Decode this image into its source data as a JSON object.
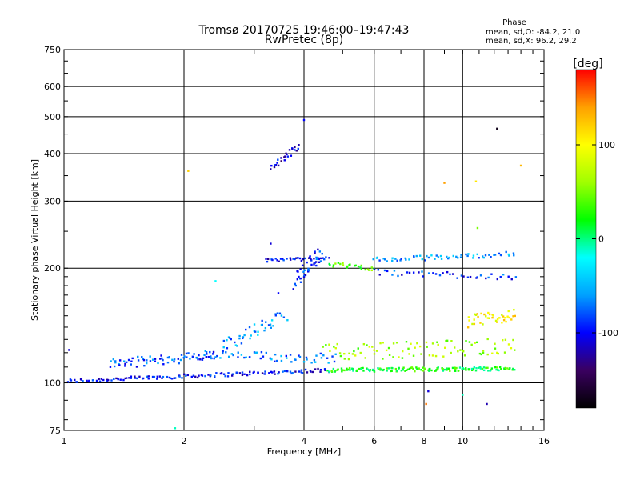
{
  "chart_data": {
    "type": "scatter",
    "title": "Tromsø 20170725 19:46:00–19:47:43",
    "subtitle": "RwPretec (8p)",
    "xlabel": "Frequency [MHz]",
    "ylabel": "Stationary phase Virtual Height [km]",
    "x_scale": "log",
    "y_scale": "log",
    "xlim": [
      1,
      16
    ],
    "ylim": [
      75,
      750
    ],
    "x_ticks": [
      1,
      2,
      4,
      6,
      8,
      10,
      16
    ],
    "x_tick_labels": [
      "1",
      "2",
      "4",
      "6",
      "8",
      "10",
      "16"
    ],
    "y_ticks": [
      75,
      100,
      200,
      300,
      400,
      500,
      600,
      750
    ],
    "y_tick_labels": [
      "75",
      "100",
      "200",
      "300",
      "400",
      "500",
      "600",
      "750"
    ],
    "grid": true,
    "phase_box": {
      "title": "Phase",
      "line_o": "mean, sd,O:  -84.2, 21.0",
      "line_x": "mean, sd,X:  96.2, 29.2"
    },
    "colorbar": {
      "label": "[deg]",
      "range": [
        -180,
        180
      ],
      "ticks": [
        100,
        0,
        -100
      ],
      "tick_labels": [
        "100",
        "0",
        "-100"
      ],
      "colors": [
        "#000000",
        "#3a0060",
        "#0000ff",
        "#00a0ff",
        "#00ffff",
        "#00ff00",
        "#a0ff00",
        "#ffff00",
        "#ffa000",
        "#ff0000"
      ]
    },
    "traces": [
      {
        "f_start": 1.02,
        "f_end": 4.6,
        "h_start": 101,
        "h_end": 108,
        "n": 130,
        "phase": -100,
        "spread": 0.012
      },
      {
        "f_start": 4.6,
        "f_end": 13.5,
        "h_start": 108,
        "h_end": 109,
        "n": 150,
        "phase": 20,
        "spread": 0.012
      },
      {
        "f_start": 1.3,
        "f_end": 2.4,
        "h_start": 112,
        "h_end": 118,
        "n": 70,
        "phase": -80,
        "spread": 0.03
      },
      {
        "f_start": 2.2,
        "f_end": 4.8,
        "h_start": 118,
        "h_end": 116,
        "n": 60,
        "phase": -70,
        "spread": 0.03
      },
      {
        "f_start": 2.5,
        "f_end": 3.6,
        "h_start": 125,
        "h_end": 150,
        "n": 45,
        "phase": -60,
        "spread": 0.04
      },
      {
        "f_start": 3.2,
        "f_end": 4.6,
        "h_start": 210,
        "h_end": 212,
        "n": 35,
        "phase": -100,
        "spread": 0.01
      },
      {
        "f_start": 3.8,
        "f_end": 4.4,
        "h_start": 185,
        "h_end": 220,
        "n": 40,
        "phase": -90,
        "spread": 0.05
      },
      {
        "f_start": 3.3,
        "f_end": 3.9,
        "h_start": 365,
        "h_end": 420,
        "n": 25,
        "phase": -110,
        "spread": 0.02
      },
      {
        "f_start": 4.6,
        "f_end": 6.0,
        "h_start": 205,
        "h_end": 200,
        "n": 25,
        "phase": 40,
        "spread": 0.015
      },
      {
        "f_start": 6.0,
        "f_end": 13.5,
        "h_start": 210,
        "h_end": 218,
        "n": 60,
        "phase": -60,
        "spread": 0.015
      },
      {
        "f_start": 6.0,
        "f_end": 13.5,
        "h_start": 195,
        "h_end": 190,
        "n": 40,
        "phase": -90,
        "spread": 0.02
      },
      {
        "f_start": 4.5,
        "f_end": 13.5,
        "h_start": 120,
        "h_end": 125,
        "n": 90,
        "phase": 60,
        "spread": 0.05
      },
      {
        "f_start": 10.3,
        "f_end": 13.5,
        "h_start": 145,
        "h_end": 150,
        "n": 40,
        "phase": 100,
        "spread": 0.04
      }
    ],
    "points": [
      {
        "x": 4.0,
        "y": 490,
        "phase": -100
      },
      {
        "x": 12.2,
        "y": 465,
        "phase": -170
      },
      {
        "x": 2.05,
        "y": 360,
        "phase": 120
      },
      {
        "x": 9.0,
        "y": 335,
        "phase": 140
      },
      {
        "x": 10.8,
        "y": 338,
        "phase": 110
      },
      {
        "x": 14.0,
        "y": 372,
        "phase": 130
      },
      {
        "x": 10.9,
        "y": 255,
        "phase": 50
      },
      {
        "x": 3.3,
        "y": 232,
        "phase": -110
      },
      {
        "x": 2.4,
        "y": 185,
        "phase": -20
      },
      {
        "x": 3.45,
        "y": 172,
        "phase": -100
      },
      {
        "x": 8.2,
        "y": 95,
        "phase": -110
      },
      {
        "x": 8.1,
        "y": 88,
        "phase": 150
      },
      {
        "x": 10.0,
        "y": 93,
        "phase": -10
      },
      {
        "x": 11.5,
        "y": 88,
        "phase": -120
      },
      {
        "x": 1.9,
        "y": 76,
        "phase": -10
      },
      {
        "x": 1.03,
        "y": 122,
        "phase": -110
      }
    ]
  }
}
